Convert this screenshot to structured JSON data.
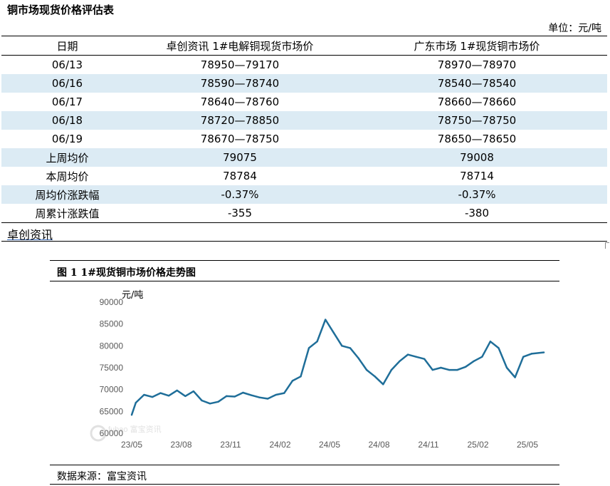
{
  "title": "铜市场现货价格评估表",
  "unit": "单位：元/吨",
  "table": {
    "headers": [
      "日期",
      "卓创资讯 1#电解铜现货市场价",
      "广东市场 1#现货铜市场价"
    ],
    "rows": [
      [
        "06/13",
        "78950—79170",
        "78970—78970"
      ],
      [
        "06/16",
        "78590—78740",
        "78540—78540"
      ],
      [
        "06/17",
        "78640—78760",
        "78660—78660"
      ],
      [
        "06/18",
        "78720—78850",
        "78750—78750"
      ],
      [
        "06/19",
        "78670—78750",
        "78650—78650"
      ],
      [
        "上周均价",
        "79075",
        "79008"
      ],
      [
        "本周均价",
        "78784",
        "78714"
      ],
      [
        "周均价涨跌幅",
        "-0.37%",
        "-0.37%"
      ],
      [
        "周累计涨跌值",
        "-355",
        "-380"
      ]
    ]
  },
  "source_top": "卓创资讯",
  "figure": {
    "title": "图 1  1#现货铜市场价格走势图",
    "source": "数据来源：富宝资讯",
    "watermark": "fubao 富宝资讯"
  },
  "chart_data": {
    "type": "line",
    "ylabel": "元/吨",
    "ylim": [
      60000,
      90000
    ],
    "yticks": [
      60000,
      65000,
      70000,
      75000,
      80000,
      85000,
      90000
    ],
    "xticks": [
      "23/05",
      "23/08",
      "23/11",
      "24/02",
      "24/05",
      "24/08",
      "24/11",
      "25/02",
      "25/05"
    ],
    "line_color": "#1f6e99",
    "series": [
      {
        "x": [
          "23/05",
          "23/05",
          "23/06",
          "23/06",
          "23/07",
          "23/07",
          "23/08",
          "23/08",
          "23/09",
          "23/09",
          "23/10",
          "23/10",
          "23/11",
          "23/11",
          "23/12",
          "23/12",
          "24/01",
          "24/01",
          "24/02",
          "24/02",
          "24/03",
          "24/03",
          "24/04",
          "24/04",
          "24/05",
          "24/05",
          "24/06",
          "24/06",
          "24/07",
          "24/07",
          "24/08",
          "24/08",
          "24/09",
          "24/09",
          "24/10",
          "24/10",
          "24/11",
          "24/11",
          "24/12",
          "24/12",
          "25/01",
          "25/01",
          "25/02",
          "25/02",
          "25/03",
          "25/03",
          "25/04",
          "25/04",
          "25/05",
          "25/05",
          "25/06"
        ],
        "values": [
          64200,
          67000,
          68800,
          68300,
          69200,
          68600,
          69800,
          68500,
          69600,
          67500,
          66800,
          67200,
          68500,
          68400,
          69300,
          68700,
          68200,
          67900,
          68800,
          69200,
          72000,
          73000,
          79500,
          81000,
          86000,
          83000,
          80000,
          79500,
          77200,
          74500,
          73000,
          71200,
          74500,
          76500,
          78000,
          77500,
          77000,
          74500,
          75000,
          74500,
          74500,
          75200,
          76500,
          77500,
          81000,
          79500,
          75000,
          72800,
          77500,
          78200,
          78500
        ]
      }
    ]
  }
}
